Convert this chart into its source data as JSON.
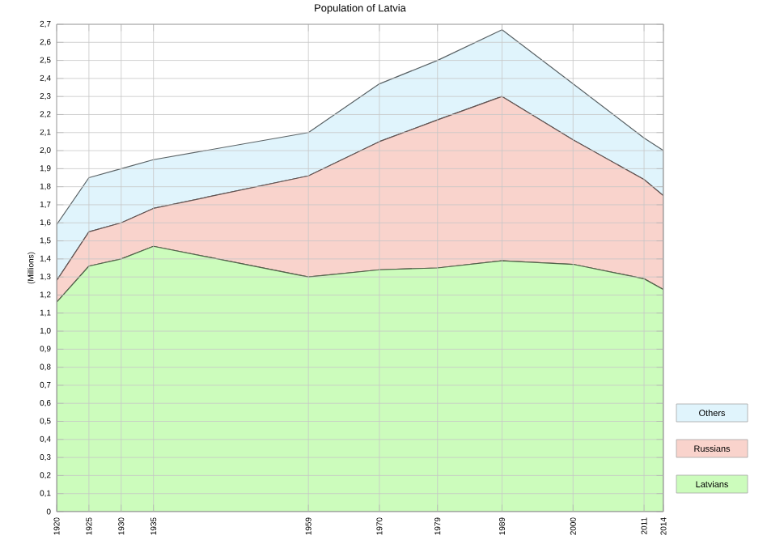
{
  "chart_data": {
    "type": "area",
    "stacked": true,
    "title": "Population of Latvia",
    "ylabel": "(Millions)",
    "x": [
      1920,
      1925,
      1930,
      1935,
      1959,
      1970,
      1979,
      1989,
      2000,
      2011,
      2014
    ],
    "series": [
      {
        "name": "Latvians",
        "color": "#ccfcbc",
        "values": [
          1.16,
          1.36,
          1.4,
          1.47,
          1.3,
          1.34,
          1.35,
          1.39,
          1.37,
          1.29,
          1.23
        ]
      },
      {
        "name": "Russians",
        "color": "#f9d3cc",
        "values": [
          0.12,
          0.19,
          0.2,
          0.21,
          0.56,
          0.71,
          0.82,
          0.91,
          0.69,
          0.55,
          0.52
        ]
      },
      {
        "name": "Others",
        "color": "#e0f4fc",
        "values": [
          0.31,
          0.3,
          0.3,
          0.27,
          0.24,
          0.32,
          0.33,
          0.37,
          0.31,
          0.23,
          0.25
        ]
      }
    ],
    "xlim": [
      1920,
      2014
    ],
    "xticks": [
      1920,
      1925,
      1930,
      1935,
      1959,
      1970,
      1979,
      1989,
      2000,
      2011,
      2014
    ],
    "ylim": [
      0,
      2.7
    ],
    "yticks": [
      0,
      {
        "value": 0.1,
        "label": "0,1"
      },
      {
        "value": 0.2,
        "label": "0,2"
      },
      {
        "value": 0.3,
        "label": "0,3"
      },
      {
        "value": 0.4,
        "label": "0,4"
      },
      {
        "value": 0.5,
        "label": "0,5"
      },
      {
        "value": 0.6,
        "label": "0,6"
      },
      {
        "value": 0.7,
        "label": "0,7"
      },
      {
        "value": 0.8,
        "label": "0,8"
      },
      {
        "value": 0.9,
        "label": "0,9"
      },
      {
        "value": 1.0,
        "label": "1,0"
      },
      {
        "value": 1.1,
        "label": "1,1"
      },
      {
        "value": 1.2,
        "label": "1,2"
      },
      {
        "value": 1.3,
        "label": "1,3"
      },
      {
        "value": 1.4,
        "label": "1,4"
      },
      {
        "value": 1.5,
        "label": "1,5"
      },
      {
        "value": 1.6,
        "label": "1,6"
      },
      {
        "value": 1.7,
        "label": "1,7"
      },
      {
        "value": 1.8,
        "label": "1,8"
      },
      {
        "value": 1.9,
        "label": "1,9"
      },
      {
        "value": 2.0,
        "label": "2,0"
      },
      {
        "value": 2.1,
        "label": "2,1"
      },
      {
        "value": 2.2,
        "label": "2,2"
      },
      {
        "value": 2.3,
        "label": "2,3"
      },
      {
        "value": 2.4,
        "label": "2,4"
      },
      {
        "value": 2.5,
        "label": "2,5"
      },
      {
        "value": 2.6,
        "label": "2,6"
      },
      {
        "value": 2.7,
        "label": "2,7"
      }
    ],
    "grid": true,
    "legend": "right"
  }
}
